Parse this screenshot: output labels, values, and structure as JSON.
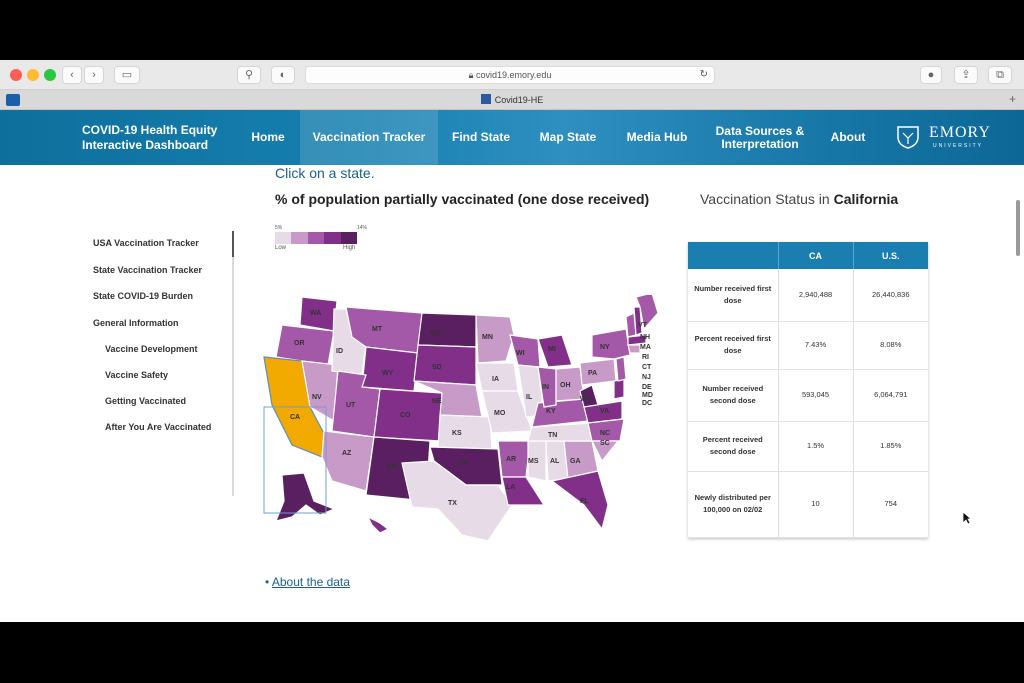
{
  "browser": {
    "url": "covid19.emory.edu",
    "tab_title": "Covid19-HE"
  },
  "nav": {
    "brand": "COVID-19 Health Equity Interactive Dashboard",
    "items": [
      "Home",
      "Vaccination Tracker",
      "Find State",
      "Map State",
      "Media Hub",
      "Data Sources & Interpretation",
      "About"
    ],
    "active": "Vaccination Tracker",
    "logo_text": "EMORY",
    "logo_sub": "UNIVERSITY"
  },
  "content": {
    "click_hint": "Click on a state.",
    "map_title": "% of population partially vaccinated (one dose received)",
    "legend": {
      "low": "Low",
      "high": "High",
      "min": "5%",
      "max": "14%"
    },
    "about_link": "About the data"
  },
  "sidebar": {
    "items": [
      "USA Vaccination Tracker",
      "State Vaccination Tracker",
      "State COVID-19 Burden",
      "General Information",
      "Vaccine Development",
      "Vaccine Safety",
      "Getting Vaccinated",
      "After You Are Vaccinated"
    ]
  },
  "map": {
    "selected_state": "CA",
    "selected_color": "#f2a900",
    "labels": [
      "WA",
      "OR",
      "ID",
      "MT",
      "ND",
      "MN",
      "WI",
      "MI",
      "NY",
      "VT",
      "NH",
      "MA",
      "RI",
      "CT",
      "NJ",
      "DE",
      "MD",
      "DC",
      "PA",
      "OH",
      "IN",
      "IL",
      "IA",
      "NE",
      "SD",
      "WY",
      "UT",
      "NV",
      "CA",
      "AZ",
      "CO",
      "NM",
      "KS",
      "MO",
      "OK",
      "TX",
      "AR",
      "LA",
      "MS",
      "AL",
      "TN",
      "KY",
      "WV",
      "VA",
      "NC",
      "SC",
      "GA",
      "FL"
    ]
  },
  "status": {
    "prefix": "Vaccination Status in",
    "state": "California",
    "columns": [
      "",
      "CA",
      "U.S."
    ],
    "rows": [
      {
        "label": "Number received first dose",
        "ca": "2,940,488",
        "us": "26,440,836"
      },
      {
        "label": "Percent received first dose",
        "ca": "7.43%",
        "us": "8.08%"
      },
      {
        "label": "Number received second dose",
        "ca": "593,045",
        "us": "6,064,791"
      },
      {
        "label": "Percent received second dose",
        "ca": "1.5%",
        "us": "1.85%"
      },
      {
        "label": "Newly distributed per 100,000 on 02/02",
        "ca": "10",
        "us": "754"
      }
    ]
  },
  "colors": {
    "nav": "#1680b0",
    "table_header": "#1a7fb0",
    "scale": [
      "#e8dbe8",
      "#c89ac8",
      "#a458a8",
      "#822f8a",
      "#5a1f60"
    ]
  }
}
